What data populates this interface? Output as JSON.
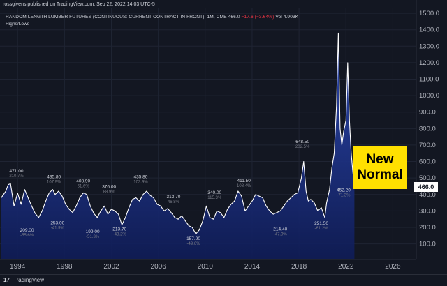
{
  "header": {
    "published": "rossgivens published on TradingView.com, Sep 22, 2022 14:03 UTC-5",
    "title_symbol": "RANDOM LENGTH LUMBER FUTURES (CONTINUOUS: CURRENT CONTRACT IN FRONT), 1M, CME",
    "title_price": "466.0",
    "title_change": "−17.6 (−3.64%)",
    "title_vol": "Vol 4.903K",
    "subtitle": "Highs/Lows"
  },
  "annotation": {
    "line1": "New",
    "line2": "Normal"
  },
  "price_tag": "466.0",
  "footer": {
    "logo_mark": "17",
    "logo_text": "TradingView"
  },
  "colors": {
    "background": "#131722",
    "line": "#ffffff",
    "fill_top": "#2e4bb8",
    "fill_bottom": "#0f1c57",
    "annotation_bg": "#ffe000"
  },
  "chart_data": {
    "type": "area",
    "xlabel": "",
    "ylabel": "",
    "x_range": [
      1992.5,
      2028.0
    ],
    "ylim": [
      5,
      1530
    ],
    "y_ticks": [
      100.0,
      200.0,
      300.0,
      400.0,
      500.0,
      600.0,
      700.0,
      800.0,
      900.0,
      1000.0,
      1100.0,
      1200.0,
      1300.0,
      1400.0,
      1500.0
    ],
    "x_ticks": [
      {
        "x": 1994,
        "label": "1994"
      },
      {
        "x": 1998,
        "label": "1998"
      },
      {
        "x": 2002,
        "label": "2002"
      },
      {
        "x": 2006,
        "label": "2006"
      },
      {
        "x": 2010,
        "label": "2010"
      },
      {
        "x": 2014,
        "label": "2014"
      },
      {
        "x": 2018,
        "label": "2018"
      },
      {
        "x": 2022,
        "label": "2022"
      },
      {
        "x": 2026,
        "label": "2026"
      }
    ],
    "grid": true,
    "series": [
      {
        "x": [
          1992.6,
          1993.0,
          1993.2,
          1993.4,
          1993.7,
          1994.0,
          1994.3,
          1994.6,
          1994.9,
          1995.2,
          1995.5,
          1995.8,
          1996.1,
          1996.4,
          1996.7,
          1997.0,
          1997.2,
          1997.5,
          1997.8,
          1998.1,
          1998.4,
          1998.7,
          1999.0,
          1999.3,
          1999.6,
          1999.9,
          2000.2,
          2000.5,
          2000.8,
          2001.1,
          2001.4,
          2001.7,
          2002.0,
          2002.3,
          2002.6,
          2002.9,
          2003.2,
          2003.5,
          2003.8,
          2004.1,
          2004.4,
          2004.7,
          2005.0,
          2005.3,
          2005.6,
          2005.9,
          2006.2,
          2006.5,
          2006.8,
          2007.1,
          2007.4,
          2007.7,
          2008.0,
          2008.3,
          2008.6,
          2008.9,
          2009.2,
          2009.5,
          2009.8,
          2010.1,
          2010.4,
          2010.7,
          2011.0,
          2011.3,
          2011.6,
          2011.9,
          2012.2,
          2012.5,
          2012.8,
          2013.1,
          2013.4,
          2013.7,
          2014.0,
          2014.3,
          2014.6,
          2014.9,
          2015.2,
          2015.5,
          2015.8,
          2016.1,
          2016.4,
          2016.7,
          2017.0,
          2017.3,
          2017.6,
          2017.9,
          2018.2,
          2018.4,
          2018.6,
          2018.8,
          2019.0,
          2019.3,
          2019.6,
          2019.9,
          2020.2,
          2020.35,
          2020.6,
          2020.8,
          2021.0,
          2021.2,
          2021.35,
          2021.5,
          2021.65,
          2021.8,
          2022.0,
          2022.15,
          2022.3,
          2022.45,
          2022.6,
          2022.72
        ],
        "values": [
          380,
          420,
          460,
          465,
          330,
          409,
          340,
          430,
          380,
          330,
          285,
          260,
          300,
          360,
          410,
          430,
          400,
          420,
          390,
          340,
          310,
          290,
          330,
          380,
          410,
          400,
          330,
          285,
          260,
          300,
          330,
          280,
          310,
          300,
          280,
          215,
          260,
          320,
          370,
          380,
          360,
          400,
          420,
          395,
          380,
          340,
          330,
          300,
          315,
          290,
          260,
          250,
          270,
          240,
          210,
          200,
          160,
          185,
          240,
          330,
          260,
          250,
          300,
          290,
          260,
          310,
          340,
          360,
          420,
          390,
          300,
          330,
          360,
          400,
          390,
          380,
          330,
          300,
          280,
          290,
          300,
          330,
          360,
          380,
          400,
          410,
          500,
          600,
          420,
          360,
          370,
          350,
          300,
          320,
          260,
          350,
          430,
          560,
          650,
          940,
          1380,
          800,
          700,
          780,
          850,
          1200,
          850,
          650,
          530,
          466
        ]
      }
    ],
    "annotations": [
      {
        "x": 1993.9,
        "y": 471.0,
        "label": "471.00",
        "pct": "210.7%",
        "pos": "above"
      },
      {
        "x": 1994.8,
        "y": 209.0,
        "label": "209.00",
        "pct": "-55.6%",
        "pos": "below"
      },
      {
        "x": 1997.1,
        "y": 435.8,
        "label": "435.80",
        "pct": "107.9%",
        "pos": "above"
      },
      {
        "x": 1997.4,
        "y": 253.0,
        "label": "253.00",
        "pct": "-41.9%",
        "pos": "below"
      },
      {
        "x": 1999.6,
        "y": 408.9,
        "label": "408.90",
        "pct": "61.6%",
        "pos": "above"
      },
      {
        "x": 2000.4,
        "y": 199.0,
        "label": "199.00",
        "pct": "-51.3%",
        "pos": "below"
      },
      {
        "x": 2001.8,
        "y": 376.0,
        "label": "376.00",
        "pct": "88.9%",
        "pos": "above"
      },
      {
        "x": 2002.7,
        "y": 213.7,
        "label": "213.70",
        "pct": "-43.2%",
        "pos": "below"
      },
      {
        "x": 2004.5,
        "y": 435.8,
        "label": "435.80",
        "pct": "103.9%",
        "pos": "above"
      },
      {
        "x": 2007.3,
        "y": 313.7,
        "label": "313.70",
        "pct": "46.8%",
        "pos": "above"
      },
      {
        "x": 2009.0,
        "y": 157.9,
        "label": "157.90",
        "pct": "-49.6%",
        "pos": "below"
      },
      {
        "x": 2010.8,
        "y": 340.0,
        "label": "340.00",
        "pct": "115.3%",
        "pos": "above"
      },
      {
        "x": 2013.3,
        "y": 411.5,
        "label": "411.50",
        "pct": "108.4%",
        "pos": "above"
      },
      {
        "x": 2016.4,
        "y": 214.4,
        "label": "214.40",
        "pct": "-47.9%",
        "pos": "below"
      },
      {
        "x": 2018.3,
        "y": 648.5,
        "label": "648.50",
        "pct": "202.5%",
        "pos": "above"
      },
      {
        "x": 2019.9,
        "y": 251.5,
        "label": "251.50",
        "pct": "-61.2%",
        "pos": "below"
      },
      {
        "x": 2021.8,
        "y": 452.2,
        "label": "452.20",
        "pct": "-71.3%",
        "pos": "below"
      }
    ]
  }
}
